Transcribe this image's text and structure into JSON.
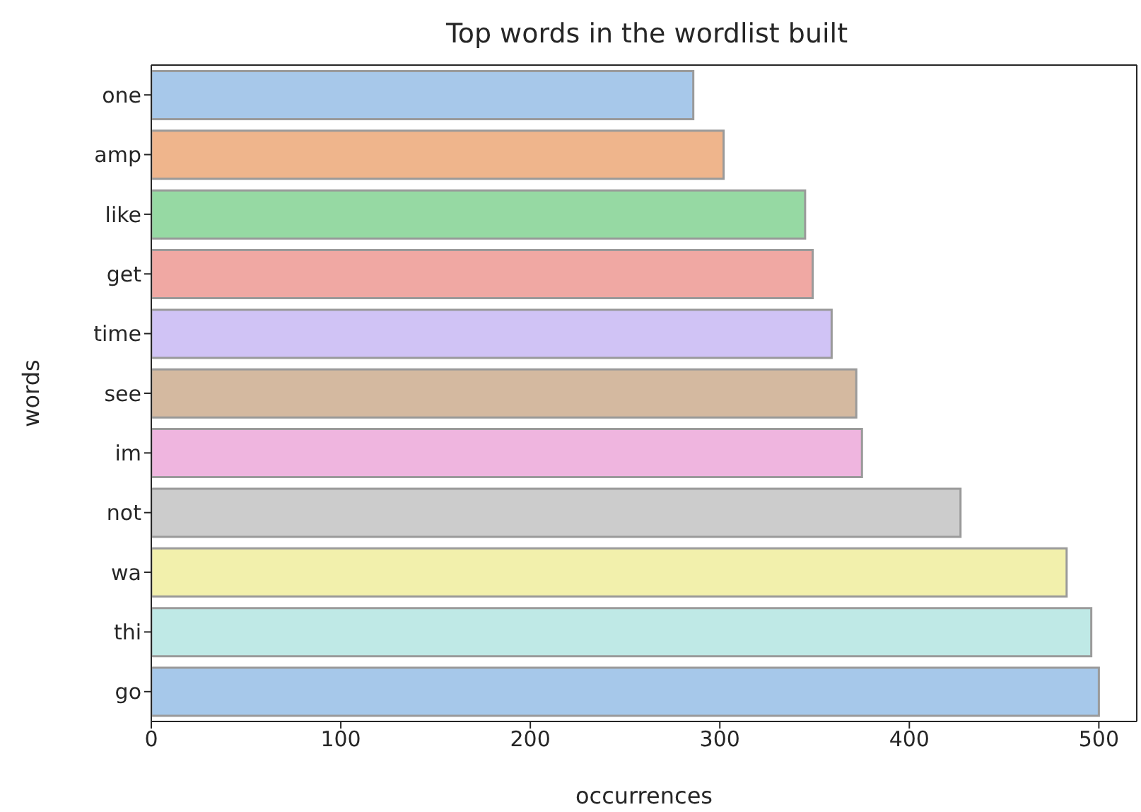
{
  "chart_data": {
    "type": "bar",
    "orientation": "horizontal",
    "title": "Top words in the wordlist built",
    "xlabel": "occurrences",
    "ylabel": "words",
    "categories": [
      "one",
      "amp",
      "like",
      "get",
      "time",
      "see",
      "im",
      "not",
      "wa",
      "thi",
      "go"
    ],
    "values": [
      286,
      302,
      345,
      349,
      359,
      372,
      375,
      427,
      483,
      496,
      500
    ],
    "colors": [
      "#a7c8ea",
      "#efb58c",
      "#96d9a3",
      "#f0a8a3",
      "#d0c3f5",
      "#d4b9a0",
      "#efb5df",
      "#cccccc",
      "#f2f0ac",
      "#bfe9e6",
      "#a6c8ea"
    ],
    "xlim": [
      0,
      520
    ],
    "xticks": [
      0,
      100,
      200,
      300,
      400,
      500
    ],
    "grid": false,
    "legend": false
  }
}
